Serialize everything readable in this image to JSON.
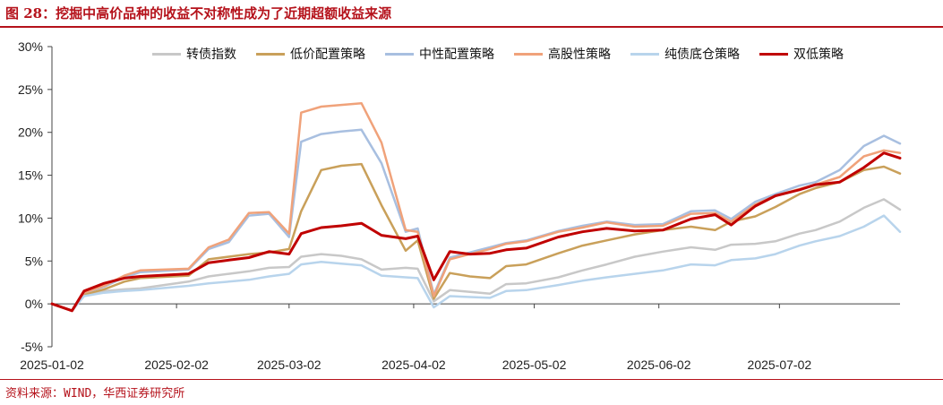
{
  "header": {
    "title": "图 28：挖掘中高价品种的收益不对称性成为了近期超额收益来源"
  },
  "footer": {
    "source": "资料来源：WIND，华西证券研究所"
  },
  "chart_data": {
    "type": "line",
    "x_ticks": [
      "2025-01-02",
      "2025-02-02",
      "2025-03-02",
      "2025-04-02",
      "2025-05-02",
      "2025-06-02",
      "2025-07-02"
    ],
    "y_ticks": [
      "30%",
      "25%",
      "20%",
      "15%",
      "10%",
      "5%",
      "0%",
      "-5%"
    ],
    "ylim": [
      -5,
      30
    ],
    "x_dates": [
      "2025-01-02",
      "2025-01-07",
      "2025-01-10",
      "2025-01-15",
      "2025-01-20",
      "2025-01-24",
      "2025-02-05",
      "2025-02-10",
      "2025-02-15",
      "2025-02-20",
      "2025-02-25",
      "2025-03-02",
      "2025-03-05",
      "2025-03-10",
      "2025-03-15",
      "2025-03-20",
      "2025-03-25",
      "2025-03-31",
      "2025-04-03",
      "2025-04-07",
      "2025-04-11",
      "2025-04-16",
      "2025-04-21",
      "2025-04-25",
      "2025-04-30",
      "2025-05-08",
      "2025-05-14",
      "2025-05-20",
      "2025-05-27",
      "2025-06-03",
      "2025-06-10",
      "2025-06-16",
      "2025-06-20",
      "2025-06-26",
      "2025-07-01",
      "2025-07-07",
      "2025-07-11",
      "2025-07-17",
      "2025-07-23",
      "2025-07-28",
      "2025-08-01"
    ],
    "series": [
      {
        "name": "转债指数",
        "color": "#c8c8c8",
        "values": [
          0,
          -0.8,
          1.0,
          1.5,
          1.7,
          1.8,
          2.6,
          3.2,
          3.5,
          3.8,
          4.2,
          4.3,
          5.5,
          5.8,
          5.6,
          5.2,
          4.0,
          4.2,
          4.1,
          0.3,
          1.6,
          1.4,
          1.2,
          2.3,
          2.4,
          3.1,
          3.9,
          4.6,
          5.5,
          6.1,
          6.6,
          6.3,
          6.9,
          7.0,
          7.3,
          8.2,
          8.6,
          9.6,
          11.2,
          12.2,
          11.0
        ]
      },
      {
        "name": "低价配置策略",
        "color": "#c9a05a",
        "values": [
          0,
          -0.8,
          1.1,
          1.7,
          2.6,
          3.0,
          3.3,
          5.2,
          5.5,
          5.8,
          6.0,
          6.4,
          10.8,
          15.6,
          16.1,
          16.3,
          11.5,
          6.2,
          7.4,
          0.6,
          3.6,
          3.2,
          3.0,
          4.4,
          4.6,
          5.9,
          6.8,
          7.4,
          8.1,
          8.6,
          9.0,
          8.6,
          9.6,
          10.2,
          11.3,
          12.8,
          13.5,
          14.2,
          15.6,
          16.0,
          15.2
        ]
      },
      {
        "name": "中性配置策略",
        "color": "#a8bfe0",
        "values": [
          0,
          -0.8,
          1.3,
          2.0,
          3.1,
          3.7,
          4.0,
          6.4,
          7.2,
          10.3,
          10.5,
          7.8,
          18.9,
          19.8,
          20.1,
          20.3,
          16.4,
          8.4,
          8.8,
          1.1,
          5.4,
          6.0,
          6.6,
          7.1,
          7.4,
          8.5,
          9.1,
          9.6,
          9.2,
          9.3,
          10.8,
          10.9,
          9.9,
          11.9,
          12.8,
          13.8,
          14.2,
          15.6,
          18.4,
          19.6,
          18.7
        ]
      },
      {
        "name": "高股性策略",
        "color": "#f0a27a",
        "values": [
          0,
          -0.8,
          1.3,
          2.1,
          3.3,
          3.9,
          4.1,
          6.6,
          7.5,
          10.6,
          10.7,
          8.2,
          22.3,
          23.0,
          23.2,
          23.4,
          18.8,
          8.6,
          8.4,
          0.9,
          5.2,
          5.8,
          6.4,
          7.0,
          7.3,
          8.4,
          8.9,
          9.5,
          9.0,
          9.1,
          10.5,
          10.6,
          9.6,
          11.6,
          12.6,
          13.4,
          13.9,
          14.8,
          17.2,
          17.9,
          17.6
        ]
      },
      {
        "name": "纯债底仓策略",
        "color": "#b8d4ec",
        "values": [
          0,
          -0.8,
          0.9,
          1.3,
          1.5,
          1.6,
          2.1,
          2.4,
          2.6,
          2.8,
          3.2,
          3.5,
          4.6,
          4.9,
          4.7,
          4.5,
          3.3,
          3.1,
          3.0,
          -0.4,
          0.9,
          0.8,
          0.7,
          1.5,
          1.6,
          2.2,
          2.7,
          3.1,
          3.5,
          3.9,
          4.6,
          4.5,
          5.1,
          5.3,
          5.8,
          6.8,
          7.3,
          7.9,
          9.0,
          10.3,
          8.4
        ]
      },
      {
        "name": "双低策略",
        "color": "#c00000",
        "values": [
          0,
          -0.8,
          1.5,
          2.4,
          3.0,
          3.2,
          3.5,
          4.8,
          5.1,
          5.4,
          6.1,
          5.8,
          8.2,
          8.9,
          9.1,
          9.4,
          8.0,
          7.6,
          7.9,
          2.8,
          6.1,
          5.8,
          5.9,
          6.3,
          6.5,
          7.8,
          8.4,
          8.8,
          8.5,
          8.6,
          9.9,
          10.4,
          9.2,
          11.4,
          12.6,
          13.3,
          13.9,
          14.2,
          15.9,
          17.6,
          17.0
        ]
      }
    ]
  }
}
